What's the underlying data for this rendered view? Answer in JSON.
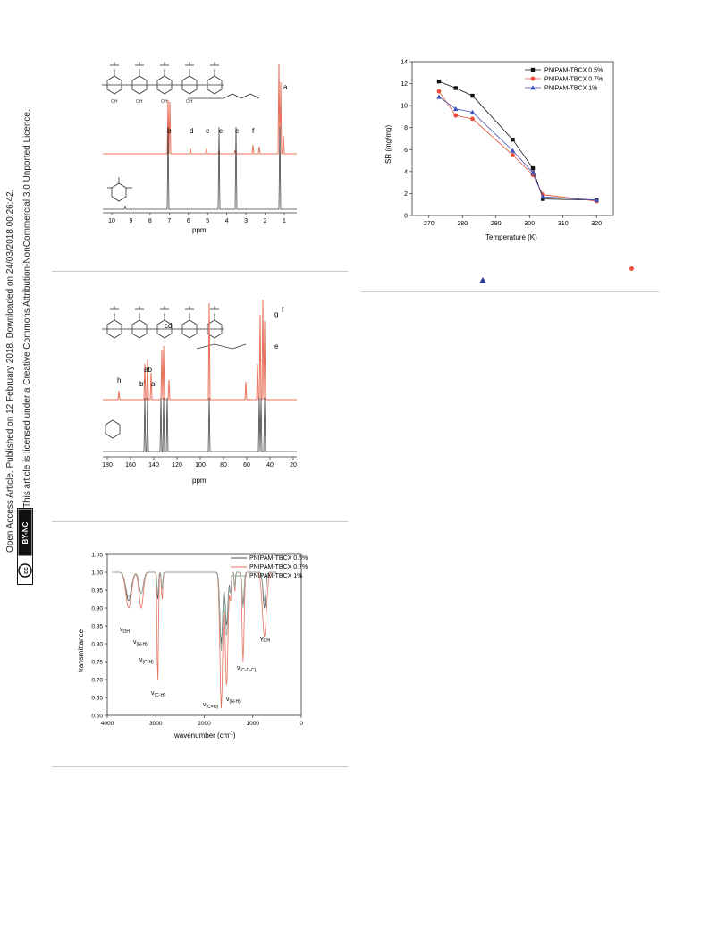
{
  "sidebar": {
    "line1": "Open Access Article. Published on 12 February 2018. Downloaded on 24/03/2018 00:26:42.",
    "line2": "This article is licensed under a Creative Commons Attribution-NonCommercial 3.0 Unported Licence.",
    "badge_cc": "cc",
    "badge_text": "BY-NC"
  },
  "nmr_h": {
    "xlabel": "ppm",
    "ticks": [
      "10",
      "9",
      "8",
      "7",
      "6",
      "5",
      "4",
      "3",
      "2",
      "1"
    ],
    "peak_labels": [
      "a",
      "b",
      "d",
      "e",
      "c",
      "c",
      "f"
    ]
  },
  "nmr_c": {
    "xlabel": "ppm",
    "ticks": [
      "180",
      "160",
      "140",
      "120",
      "100",
      "80",
      "60",
      "40",
      "20"
    ],
    "peak_labels": [
      "g",
      "f",
      "e",
      "cd",
      "ab",
      "b'",
      "a'",
      "h"
    ]
  },
  "ftir": {
    "xlabel": "wavenumber (cm",
    "xlabel_sup": "-1",
    "xlabel_end": ")",
    "ylabel": "transmittance",
    "yticks": [
      "1.05",
      "1.00",
      "0.95",
      "0.90",
      "0.85",
      "0.80",
      "0.75",
      "0.70",
      "0.65",
      "0.60"
    ],
    "xticks": [
      "4000",
      "3000",
      "2000",
      "1000",
      "0"
    ],
    "legend": [
      "PNIPAM-TBCX 0.5%",
      "PNIPAM-TBCX 0.7%",
      "PNIPAM-TBCX 1%"
    ],
    "annotations": [
      {
        "sym": "ν",
        "sub": "OH"
      },
      {
        "sym": "ν",
        "sub": "(N-H)"
      },
      {
        "sym": "ν",
        "sub": "(C-H)"
      },
      {
        "sym": "ν",
        "sub": "(C-H)"
      },
      {
        "sym": "ν",
        "sub": "(C=O)"
      },
      {
        "sym": "ν",
        "sub": "(N-H)"
      },
      {
        "sym": "ν",
        "sub": "(C-O-C)"
      },
      {
        "sym": "γ",
        "sub": "OH"
      }
    ],
    "colors": [
      "#555555",
      "#e8705a",
      "#8fa8a0"
    ]
  },
  "chart_data": {
    "type": "line",
    "xlabel": "Temperature (K)",
    "ylabel": "SR (mg/mg)",
    "xlim": [
      265,
      325
    ],
    "ylim": [
      0,
      14
    ],
    "xticks": [
      270,
      280,
      290,
      300,
      310,
      320
    ],
    "yticks": [
      0,
      2,
      4,
      6,
      8,
      10,
      12,
      14
    ],
    "legend_position": "top-right",
    "grid": false,
    "series": [
      {
        "name": "PNIPAM-TBCX 0.5%",
        "color": "#111111",
        "marker": "square",
        "x": [
          273,
          278,
          283,
          295,
          301,
          304,
          320
        ],
        "y": [
          12.2,
          11.6,
          10.9,
          6.9,
          4.3,
          1.5,
          1.4
        ]
      },
      {
        "name": "PNIPAM-TBCX 0.7%",
        "color": "#e8503a",
        "marker": "circle",
        "x": [
          273,
          278,
          283,
          295,
          301,
          304,
          320
        ],
        "y": [
          11.3,
          9.1,
          8.8,
          5.5,
          3.7,
          1.9,
          1.3
        ]
      },
      {
        "name": "PNIPAM-TBCX 1%",
        "color": "#3a4fb8",
        "marker": "triangle",
        "x": [
          273,
          278,
          283,
          295,
          301,
          304,
          320
        ],
        "y": [
          10.8,
          9.7,
          9.4,
          5.9,
          3.9,
          1.7,
          1.4
        ]
      }
    ]
  },
  "stray_marks": {
    "circle_color": "#e8503a",
    "triangle_color": "#2a3a90"
  }
}
